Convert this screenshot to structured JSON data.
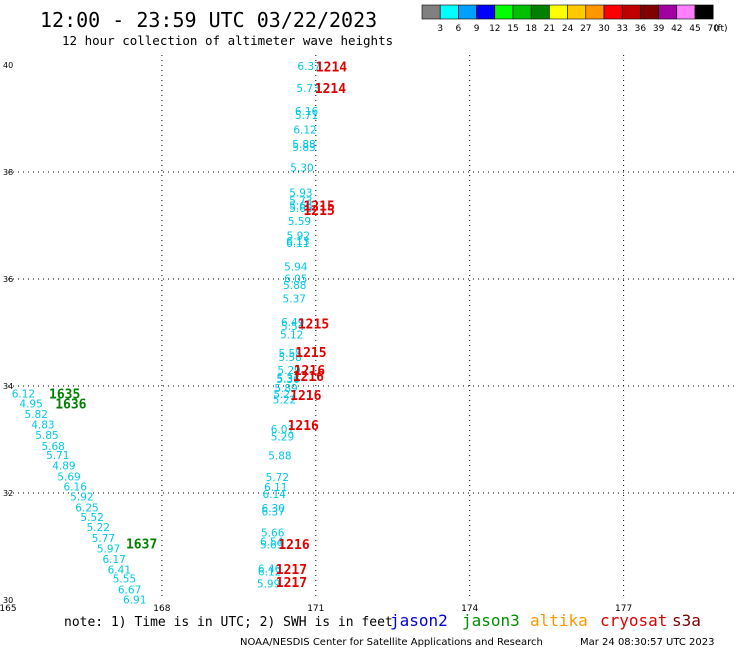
{
  "header": {
    "title": "12:00 - 23:59 UTC 03/22/2023",
    "subtitle": "12 hour collection of altimeter wave heights"
  },
  "legend": {
    "unit": "(ft)",
    "bins": [
      {
        "label": "3",
        "color": "#808080"
      },
      {
        "label": "6",
        "color": "#00ffff"
      },
      {
        "label": "9",
        "color": "#00a0ff"
      },
      {
        "label": "12",
        "color": "#0000ff"
      },
      {
        "label": "15",
        "color": "#00ff00"
      },
      {
        "label": "18",
        "color": "#00c000"
      },
      {
        "label": "21",
        "color": "#008000"
      },
      {
        "label": "24",
        "color": "#ffff00"
      },
      {
        "label": "27",
        "color": "#ffc800"
      },
      {
        "label": "30",
        "color": "#ff9600"
      },
      {
        "label": "33",
        "color": "#ff0000"
      },
      {
        "label": "36",
        "color": "#c00000"
      },
      {
        "label": "39",
        "color": "#800000"
      },
      {
        "label": "42",
        "color": "#a000a0"
      },
      {
        "label": "45",
        "color": "#ff80ff"
      },
      {
        "label": "70",
        "color": "#000000"
      }
    ]
  },
  "map": {
    "lon_ticks": [
      "165",
      "168",
      "171",
      "174",
      "177"
    ],
    "lat_ticks": [
      "30",
      "32",
      "34",
      "36",
      "38",
      "40"
    ],
    "lon_range": [
      165,
      178.5
    ],
    "lat_range": [
      30,
      40
    ]
  },
  "observations": {
    "swh_color": "#00c8e6",
    "points": [
      {
        "lon": 170.87,
        "lat": 39.98,
        "v": "6.37"
      },
      {
        "lon": 170.85,
        "lat": 39.57,
        "v": "5.73"
      },
      {
        "lon": 170.82,
        "lat": 39.14,
        "v": "6.16"
      },
      {
        "lon": 170.82,
        "lat": 39.07,
        "v": "5.71"
      },
      {
        "lon": 170.79,
        "lat": 38.79,
        "v": "6.12"
      },
      {
        "lon": 170.77,
        "lat": 38.52,
        "v": "5.88"
      },
      {
        "lon": 170.77,
        "lat": 38.47,
        "v": "5.83"
      },
      {
        "lon": 170.73,
        "lat": 38.08,
        "v": "5.30"
      },
      {
        "lon": 170.71,
        "lat": 37.62,
        "v": "5.93"
      },
      {
        "lon": 170.71,
        "lat": 37.47,
        "v": "5.73"
      },
      {
        "lon": 170.71,
        "lat": 37.37,
        "v": "5.66"
      },
      {
        "lon": 170.71,
        "lat": 37.33,
        "v": "5.66"
      },
      {
        "lon": 170.68,
        "lat": 37.08,
        "v": "5.59"
      },
      {
        "lon": 170.66,
        "lat": 36.81,
        "v": "5.92"
      },
      {
        "lon": 170.65,
        "lat": 36.71,
        "v": "6.13"
      },
      {
        "lon": 170.65,
        "lat": 36.67,
        "v": "6.11"
      },
      {
        "lon": 170.61,
        "lat": 36.23,
        "v": "5.94"
      },
      {
        "lon": 170.61,
        "lat": 36.01,
        "v": "6.05"
      },
      {
        "lon": 170.59,
        "lat": 35.89,
        "v": "5.88"
      },
      {
        "lon": 170.58,
        "lat": 35.64,
        "v": "5.37"
      },
      {
        "lon": 170.55,
        "lat": 35.2,
        "v": "6.49"
      },
      {
        "lon": 170.55,
        "lat": 35.12,
        "v": "5.54"
      },
      {
        "lon": 170.53,
        "lat": 34.96,
        "v": "5.12"
      },
      {
        "lon": 170.5,
        "lat": 34.62,
        "v": "5.55"
      },
      {
        "lon": 170.5,
        "lat": 34.54,
        "v": "5.58"
      },
      {
        "lon": 170.48,
        "lat": 34.3,
        "v": "5.29"
      },
      {
        "lon": 170.46,
        "lat": 34.15,
        "v": "5.33"
      },
      {
        "lon": 170.46,
        "lat": 34.13,
        "v": "5.36"
      },
      {
        "lon": 170.42,
        "lat": 33.96,
        "v": "5.89"
      },
      {
        "lon": 170.4,
        "lat": 33.85,
        "v": "5.27"
      },
      {
        "lon": 170.39,
        "lat": 33.75,
        "v": "5.22"
      },
      {
        "lon": 170.35,
        "lat": 33.2,
        "v": "6.01"
      },
      {
        "lon": 170.35,
        "lat": 33.06,
        "v": "5.29"
      },
      {
        "lon": 170.3,
        "lat": 32.7,
        "v": "5.88"
      },
      {
        "lon": 170.25,
        "lat": 32.3,
        "v": "5.72"
      },
      {
        "lon": 170.22,
        "lat": 32.11,
        "v": "6.11"
      },
      {
        "lon": 170.19,
        "lat": 31.98,
        "v": "6.14"
      },
      {
        "lon": 170.17,
        "lat": 31.72,
        "v": "6.30"
      },
      {
        "lon": 170.17,
        "lat": 31.65,
        "v": "6.37"
      },
      {
        "lon": 170.16,
        "lat": 31.26,
        "v": "5.66"
      },
      {
        "lon": 170.14,
        "lat": 31.09,
        "v": "6.54"
      },
      {
        "lon": 170.14,
        "lat": 31.04,
        "v": "5.69"
      },
      {
        "lon": 170.1,
        "lat": 30.59,
        "v": "6.46"
      },
      {
        "lon": 170.1,
        "lat": 30.53,
        "v": "6.12"
      },
      {
        "lon": 170.08,
        "lat": 30.31,
        "v": "5.99"
      },
      {
        "lon": 165.3,
        "lat": 33.86,
        "v": "6.12"
      },
      {
        "lon": 165.45,
        "lat": 33.67,
        "v": "4.95"
      },
      {
        "lon": 165.55,
        "lat": 33.48,
        "v": "5.82"
      },
      {
        "lon": 165.68,
        "lat": 33.28,
        "v": "4.83"
      },
      {
        "lon": 165.76,
        "lat": 33.08,
        "v": "5.85"
      },
      {
        "lon": 165.88,
        "lat": 32.88,
        "v": "5.68"
      },
      {
        "lon": 165.97,
        "lat": 32.71,
        "v": "5.71"
      },
      {
        "lon": 166.09,
        "lat": 32.51,
        "v": "4.89"
      },
      {
        "lon": 166.19,
        "lat": 32.31,
        "v": "5.69"
      },
      {
        "lon": 166.31,
        "lat": 32.12,
        "v": "6.16"
      },
      {
        "lon": 166.44,
        "lat": 31.93,
        "v": "5.92"
      },
      {
        "lon": 166.54,
        "lat": 31.73,
        "v": "6.25"
      },
      {
        "lon": 166.64,
        "lat": 31.55,
        "v": "5.52"
      },
      {
        "lon": 166.76,
        "lat": 31.36,
        "v": "5.22"
      },
      {
        "lon": 166.86,
        "lat": 31.16,
        "v": "5.77"
      },
      {
        "lon": 166.96,
        "lat": 30.96,
        "v": "5.97"
      },
      {
        "lon": 167.07,
        "lat": 30.77,
        "v": "6.17"
      },
      {
        "lon": 167.17,
        "lat": 30.57,
        "v": "6.41"
      },
      {
        "lon": 167.27,
        "lat": 30.4,
        "v": "5.55"
      },
      {
        "lon": 167.37,
        "lat": 30.2,
        "v": "6.67"
      },
      {
        "lon": 167.47,
        "lat": 30.01,
        "v": "6.91"
      }
    ]
  },
  "time_labels": [
    {
      "lon": 171.0,
      "lat": 39.97,
      "text": "1214",
      "color": "#e00000"
    },
    {
      "lon": 170.98,
      "lat": 39.57,
      "text": "1214",
      "color": "#e00000"
    },
    {
      "lon": 170.76,
      "lat": 37.37,
      "text": "1215",
      "color": "#e00000"
    },
    {
      "lon": 170.76,
      "lat": 37.29,
      "text": "1215",
      "color": "#e00000"
    },
    {
      "lon": 170.65,
      "lat": 35.17,
      "text": "1215",
      "color": "#e00000"
    },
    {
      "lon": 170.6,
      "lat": 34.64,
      "text": "1215",
      "color": "#e00000"
    },
    {
      "lon": 170.57,
      "lat": 34.3,
      "text": "1216",
      "color": "#e00000"
    },
    {
      "lon": 170.55,
      "lat": 34.19,
      "text": "1216",
      "color": "#e00000"
    },
    {
      "lon": 170.5,
      "lat": 33.83,
      "text": "1216",
      "color": "#e00000"
    },
    {
      "lon": 170.45,
      "lat": 33.27,
      "text": "1216",
      "color": "#e00000"
    },
    {
      "lon": 170.27,
      "lat": 31.05,
      "text": "1216",
      "color": "#e00000"
    },
    {
      "lon": 170.22,
      "lat": 30.58,
      "text": "1217",
      "color": "#e00000"
    },
    {
      "lon": 170.22,
      "lat": 30.34,
      "text": "1217",
      "color": "#e00000"
    },
    {
      "lon": 165.8,
      "lat": 33.86,
      "text": "1635",
      "color": "#008000"
    },
    {
      "lon": 165.92,
      "lat": 33.67,
      "text": "1636",
      "color": "#008000"
    },
    {
      "lon": 167.3,
      "lat": 31.06,
      "text": "1637",
      "color": "#008000"
    }
  ],
  "footer": {
    "note": "note: 1) Time is in UTC; 2) SWH is in feet",
    "satellites": [
      {
        "name": "jason2",
        "color": "#0000e0"
      },
      {
        "name": "jason3",
        "color": "#009000"
      },
      {
        "name": "altika",
        "color": "#ff9600"
      },
      {
        "name": "cryosat",
        "color": "#e00000"
      },
      {
        "name": "s3a",
        "color": "#800000"
      }
    ],
    "credit": "NOAA/NESDIS Center for Satellite Applications and Research",
    "generated": "Mar 24 08:30:57 UTC 2023"
  }
}
